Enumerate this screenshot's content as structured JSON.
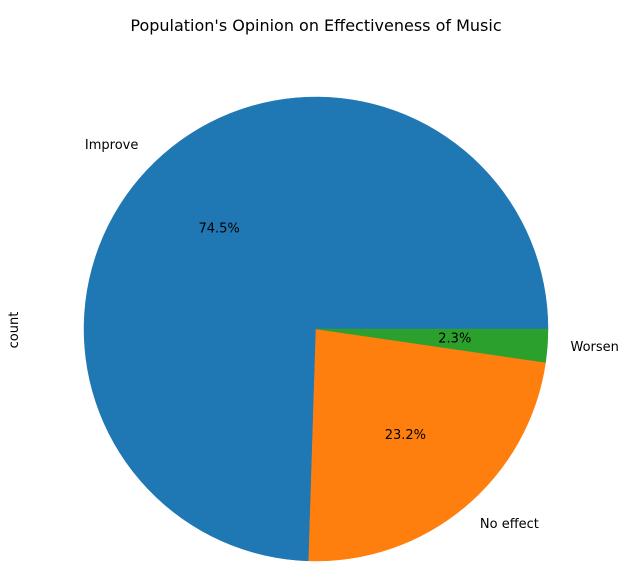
{
  "chart_data": {
    "type": "pie",
    "title": "Population's Opinion on Effectiveness of Music",
    "ylabel": "count",
    "start_angle_deg": 0,
    "direction": "counterclockwise",
    "slices": [
      {
        "label": "Improve",
        "percent": 74.5,
        "percent_label": "74.5%",
        "color": "#1f77b4"
      },
      {
        "label": "No effect",
        "percent": 23.2,
        "percent_label": "23.2%",
        "color": "#ff7f0e"
      },
      {
        "label": "Worsen",
        "percent": 2.3,
        "percent_label": "2.3%",
        "color": "#2ca02c"
      }
    ]
  }
}
